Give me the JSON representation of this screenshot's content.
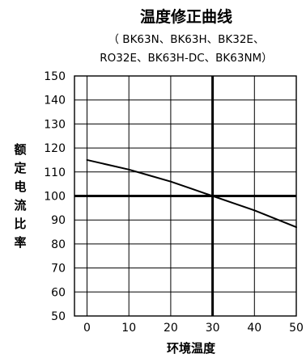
{
  "chart_data": {
    "type": "line",
    "title": "温度修正曲线",
    "subtitle_lines": [
      "（ BK63N、BK63H、BK32E、",
      "RO32E、BK63H-DC、BK63NM）"
    ],
    "xlabel": "环境温度",
    "ylabel": "额定电流比率",
    "xlim": [
      -3,
      50
    ],
    "ylim": [
      50,
      150
    ],
    "xticks": [
      0,
      10,
      20,
      30,
      40,
      50
    ],
    "yticks": [
      50,
      60,
      70,
      80,
      90,
      100,
      110,
      120,
      130,
      140,
      150
    ],
    "grid": true,
    "reference_lines": {
      "x": 30,
      "y": 100
    },
    "series": [
      {
        "x": [
          0,
          5,
          10,
          15,
          20,
          25,
          30,
          35,
          40,
          45,
          50
        ],
        "y": [
          115,
          113,
          111,
          108.5,
          106,
          103,
          100,
          97,
          94,
          90.5,
          87
        ]
      }
    ]
  }
}
